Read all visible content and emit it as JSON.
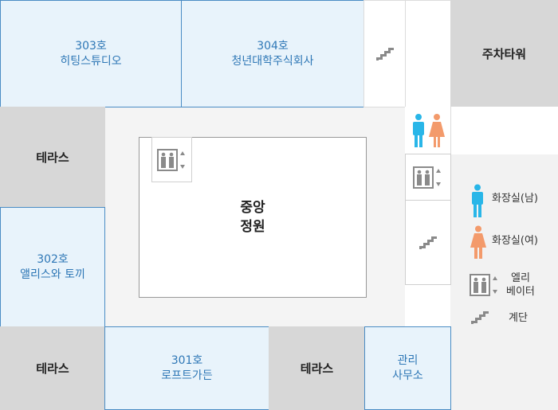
{
  "rooms": {
    "r303": {
      "number": "303호",
      "name": "히팅스튜디오"
    },
    "r304": {
      "number": "304호",
      "name": "청년대학주식회사"
    },
    "r302": {
      "number": "302호",
      "name": "앨리스와 토끼"
    },
    "r301": {
      "number": "301호",
      "name": "로프트가든"
    }
  },
  "parking_tower": "주차타워",
  "terrace_left_top": "테라스",
  "terrace_left_bottom": "테라스",
  "terrace_bottom_mid": "테라스",
  "office": {
    "line1": "관리",
    "line2": "사무소"
  },
  "garden": {
    "line1": "중앙",
    "line2": "정원"
  },
  "legend": {
    "restroom_male": "화장실(남)",
    "restroom_female": "화장실(여)",
    "elevator_line1": "엘리",
    "elevator_line2": "베이터",
    "stairs": "계단"
  },
  "colors": {
    "unit_fill": "#e8f3fb",
    "unit_border": "#4a8cc4",
    "unit_text": "#2e77b6",
    "male": "#29b6e8",
    "female": "#f39a6b",
    "icon_gray": "#8a8a8a"
  }
}
